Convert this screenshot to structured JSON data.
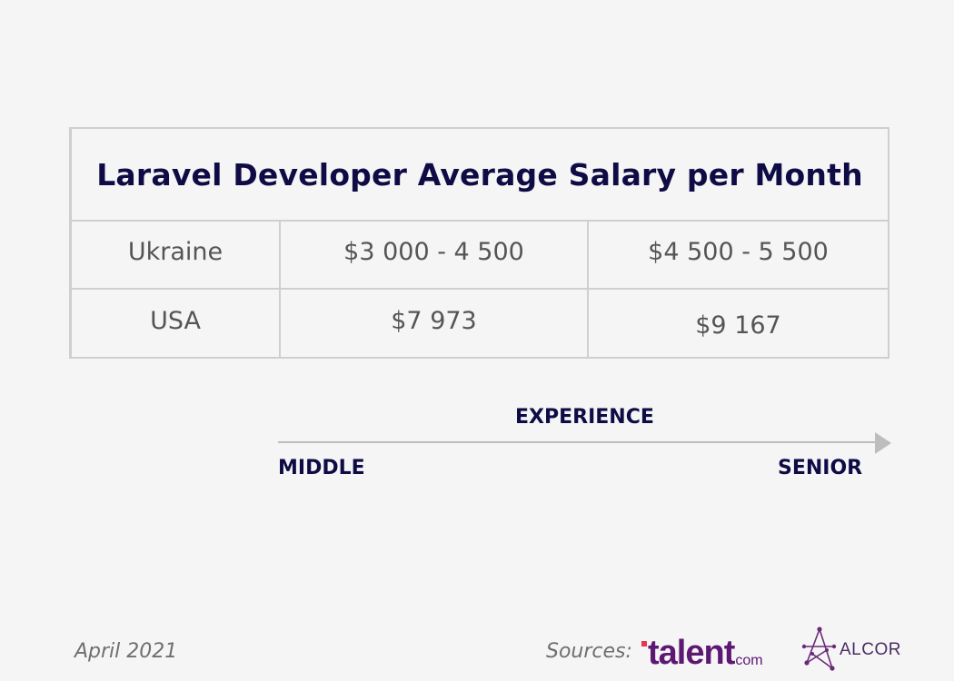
{
  "chart_data": {
    "type": "table",
    "title": "Laravel Developer Average Salary per Month",
    "columns": [
      "",
      "MIDDLE",
      "SENIOR"
    ],
    "rows": [
      {
        "country": "Ukraine",
        "middle": "$3 000 - 4 500",
        "senior": "$4 500 - 5 500"
      },
      {
        "country": "USA",
        "middle": "$7 973",
        "senior": "$9 167"
      }
    ],
    "axis": {
      "label": "EXPERIENCE",
      "start": "MIDDLE",
      "end": "SENIOR"
    }
  },
  "footer": {
    "date": "April 2021",
    "sources_label": "Sources:",
    "logo_talent": "talent",
    "logo_talent_suffix": "com",
    "logo_alcor": "ALCOR"
  },
  "colors": {
    "title": "#0f0c45",
    "text": "#555555",
    "border": "#cfcfcf",
    "talent": "#5d1873",
    "talent_dot": "#e8374d",
    "background": "#f6f5f6"
  }
}
